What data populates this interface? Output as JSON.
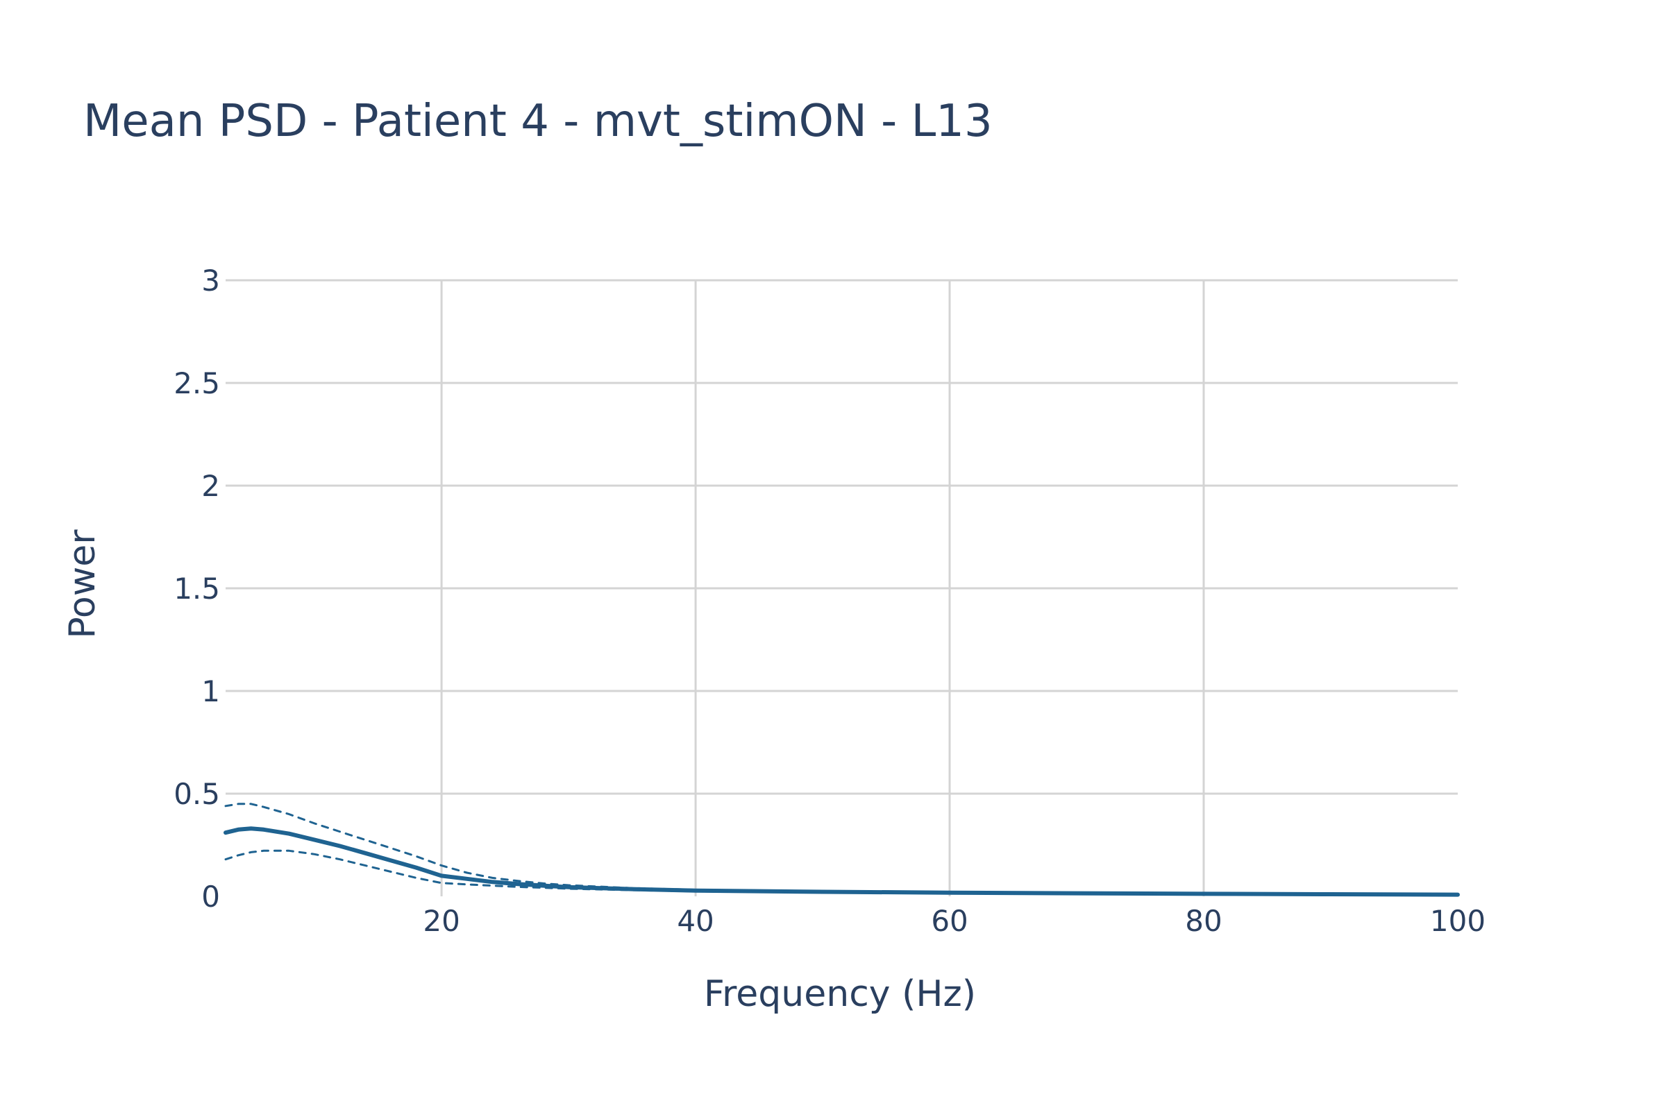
{
  "chart_data": {
    "type": "line",
    "title": "Mean PSD - Patient 4 - mvt_stimON - L13",
    "xlabel": "Frequency (Hz)",
    "ylabel": "Power",
    "xlim": [
      3,
      100
    ],
    "ylim": [
      0,
      3
    ],
    "x_ticks": [
      20,
      40,
      60,
      80,
      100
    ],
    "x_tick_labels": [
      "20",
      "40",
      "60",
      "80",
      "100"
    ],
    "y_ticks": [
      0,
      0.5,
      1,
      1.5,
      2,
      2.5,
      3
    ],
    "y_tick_labels": [
      "0",
      "0.5",
      "1",
      "1.5",
      "2",
      "2.5",
      "3"
    ],
    "grid": true,
    "legend": "none",
    "color": "#1f6391",
    "x": [
      3,
      4,
      5,
      6,
      8,
      10,
      12,
      14,
      16,
      18,
      20,
      22,
      24,
      26,
      28,
      30,
      35,
      40,
      50,
      60,
      70,
      80,
      90,
      100
    ],
    "series": [
      {
        "role": "mean",
        "line": "solid",
        "values": [
          0.31,
          0.325,
          0.33,
          0.325,
          0.305,
          0.275,
          0.245,
          0.21,
          0.175,
          0.14,
          0.1,
          0.085,
          0.07,
          0.06,
          0.052,
          0.045,
          0.035,
          0.028,
          0.022,
          0.018,
          0.015,
          0.012,
          0.01,
          0.008
        ]
      },
      {
        "role": "upper",
        "line": "dashed",
        "values": [
          0.44,
          0.45,
          0.45,
          0.435,
          0.4,
          0.355,
          0.315,
          0.275,
          0.235,
          0.195,
          0.15,
          0.115,
          0.09,
          0.075,
          0.063,
          0.054,
          0.04,
          0.032,
          0.025,
          0.02,
          0.016,
          0.013,
          0.011,
          0.009
        ]
      },
      {
        "role": "lower",
        "line": "dashed",
        "values": [
          0.18,
          0.2,
          0.215,
          0.222,
          0.222,
          0.205,
          0.18,
          0.15,
          0.12,
          0.09,
          0.065,
          0.058,
          0.052,
          0.046,
          0.042,
          0.037,
          0.03,
          0.024,
          0.019,
          0.016,
          0.013,
          0.011,
          0.009,
          0.007
        ]
      }
    ]
  }
}
